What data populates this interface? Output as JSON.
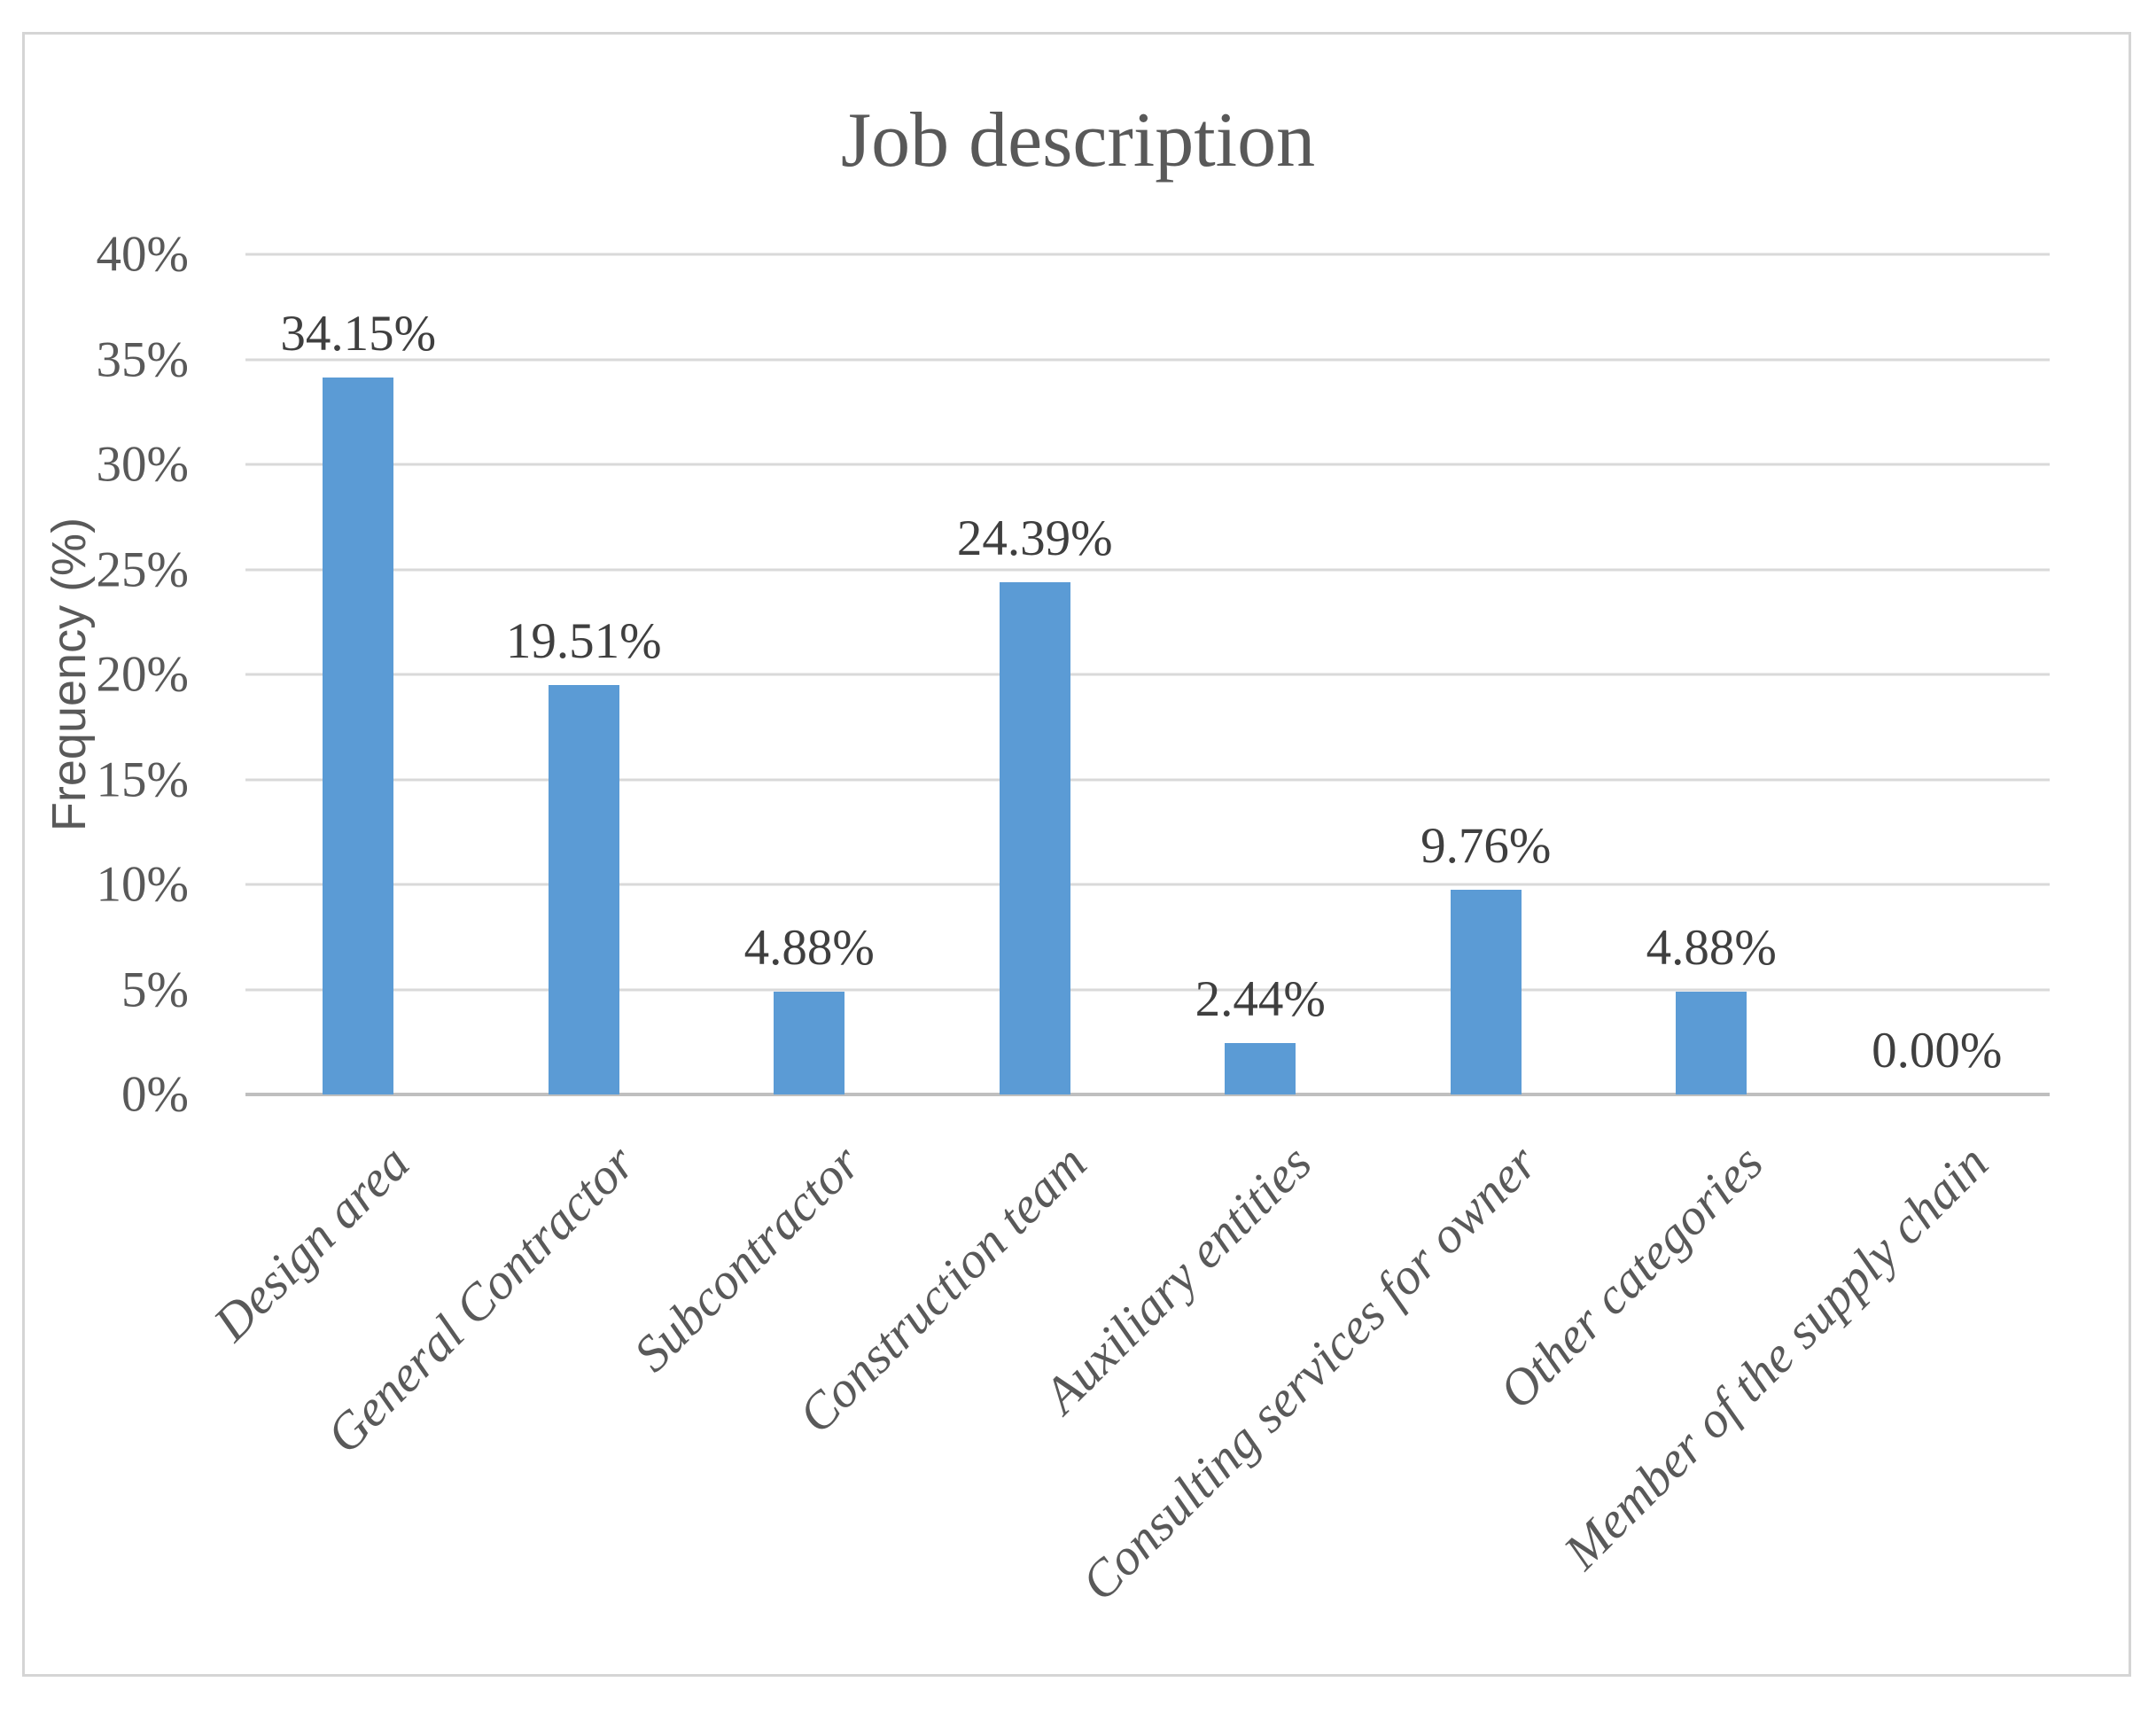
{
  "chart_data": {
    "type": "bar",
    "title": "Job description",
    "ylabel": "Frequency (%)",
    "xlabel": "",
    "categories": [
      "Design area",
      "General Contractor",
      "Subcontractor",
      "Construction team",
      "Auxiliary entities",
      "Consulting services for owner",
      "Other categories",
      "Member of the supply chain"
    ],
    "values": [
      34.15,
      19.51,
      4.88,
      24.39,
      2.44,
      9.76,
      4.88,
      0.0
    ],
    "value_labels": [
      "34.15%",
      "19.51%",
      "4.88%",
      "24.39%",
      "2.44%",
      "9.76%",
      "4.88%",
      "0.00%"
    ],
    "ylim": [
      0,
      40
    ],
    "ytick_step": 5,
    "ytick_labels": [
      "0%",
      "5%",
      "10%",
      "15%",
      "20%",
      "25%",
      "30%",
      "35%",
      "40%"
    ],
    "grid": true,
    "legend": "none",
    "colors": {
      "bar": "#5B9BD5",
      "gridline": "#D9D9D9",
      "axis_line": "#BFBFBF",
      "title": "#595959",
      "tick_label": "#595959",
      "data_label": "#3F3F3F",
      "category_label": "#595959",
      "frame_border": "#D5D5D5",
      "background": "#FFFFFF"
    }
  }
}
